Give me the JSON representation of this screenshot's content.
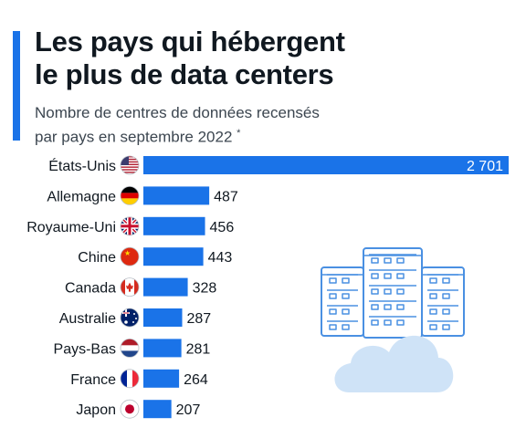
{
  "title_lines": [
    "Les pays qui hébergent",
    "le plus de data centers"
  ],
  "subtitle_lines": [
    "Nombre de centres de données recensés",
    "par pays en septembre 2022"
  ],
  "subtitle_mark": "*",
  "colors": {
    "accent": "#1a73e8",
    "bar": "#1a73e8",
    "text": "#101820",
    "illustration": "#4a90e2"
  },
  "illustration": "server-cloud-icon",
  "chart_data": {
    "type": "bar",
    "orientation": "horizontal",
    "categories": [
      "États-Unis",
      "Allemagne",
      "Royaume-Uni",
      "Chine",
      "Canada",
      "Australie",
      "Pays-Bas",
      "France",
      "Japon"
    ],
    "values": [
      2701,
      487,
      456,
      443,
      328,
      287,
      281,
      264,
      207
    ],
    "value_labels": [
      "2 701",
      "487",
      "456",
      "443",
      "328",
      "287",
      "281",
      "264",
      "207"
    ],
    "flags": [
      "us-flag-icon",
      "de-flag-icon",
      "gb-flag-icon",
      "cn-flag-icon",
      "ca-flag-icon",
      "au-flag-icon",
      "nl-flag-icon",
      "fr-flag-icon",
      "jp-flag-icon"
    ],
    "xlim": [
      0,
      2701
    ]
  }
}
